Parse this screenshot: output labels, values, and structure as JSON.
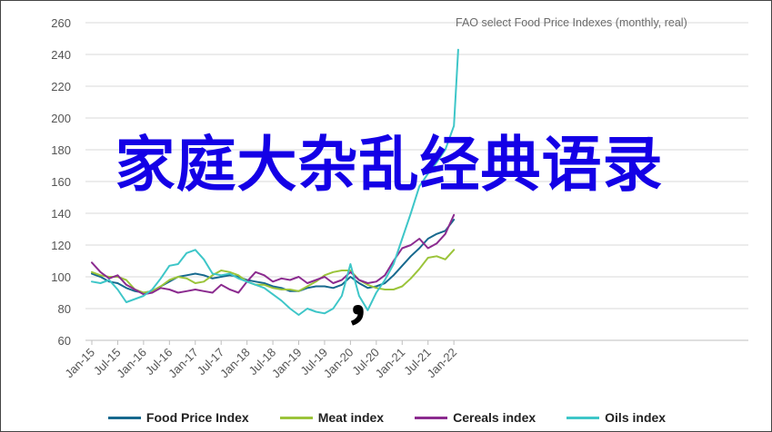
{
  "chart_data": {
    "type": "line",
    "title": "FAO select Food Price Indexes (monthly, real)",
    "xlabel": "",
    "ylabel": "",
    "ylim": [
      60,
      260
    ],
    "y_ticks": [
      60,
      80,
      100,
      120,
      140,
      160,
      180,
      200,
      220,
      240,
      260
    ],
    "x_tick_labels": [
      "Jan-15",
      "Jul-15",
      "Jan-16",
      "Jul-16",
      "Jan-17",
      "Jul-17",
      "Jan-18",
      "Jul-18",
      "Jan-19",
      "Jul-19",
      "Jan-20",
      "Jul-20",
      "Jan-21",
      "Jul-21",
      "Jan-22"
    ],
    "grid": "horizontal",
    "legend_position": "bottom",
    "series": [
      {
        "name": "Food Price Index",
        "color": "#17698e",
        "points": [
          [
            "2015-01",
            102
          ],
          [
            "2015-03",
            100
          ],
          [
            "2015-05",
            97
          ],
          [
            "2015-07",
            96
          ],
          [
            "2015-09",
            93
          ],
          [
            "2015-11",
            91
          ],
          [
            "2016-01",
            90
          ],
          [
            "2016-03",
            91
          ],
          [
            "2016-05",
            94
          ],
          [
            "2016-07",
            97
          ],
          [
            "2016-09",
            100
          ],
          [
            "2016-11",
            101
          ],
          [
            "2017-01",
            102
          ],
          [
            "2017-03",
            101
          ],
          [
            "2017-05",
            99
          ],
          [
            "2017-07",
            100
          ],
          [
            "2017-09",
            101
          ],
          [
            "2017-11",
            100
          ],
          [
            "2018-01",
            98
          ],
          [
            "2018-03",
            97
          ],
          [
            "2018-05",
            96
          ],
          [
            "2018-07",
            94
          ],
          [
            "2018-09",
            93
          ],
          [
            "2018-11",
            91
          ],
          [
            "2019-01",
            91
          ],
          [
            "2019-03",
            93
          ],
          [
            "2019-05",
            94
          ],
          [
            "2019-07",
            94
          ],
          [
            "2019-09",
            93
          ],
          [
            "2019-11",
            95
          ],
          [
            "2020-01",
            100
          ],
          [
            "2020-03",
            96
          ],
          [
            "2020-05",
            93
          ],
          [
            "2020-07",
            94
          ],
          [
            "2020-09",
            96
          ],
          [
            "2020-11",
            101
          ],
          [
            "2021-01",
            107
          ],
          [
            "2021-03",
            113
          ],
          [
            "2021-05",
            118
          ],
          [
            "2021-07",
            124
          ],
          [
            "2021-09",
            127
          ],
          [
            "2021-11",
            129
          ],
          [
            "2022-01",
            136
          ]
        ]
      },
      {
        "name": "Meat index",
        "color": "#9bc43a",
        "points": [
          [
            "2015-01",
            103
          ],
          [
            "2015-03",
            101
          ],
          [
            "2015-05",
            100
          ],
          [
            "2015-07",
            100
          ],
          [
            "2015-09",
            98
          ],
          [
            "2015-11",
            92
          ],
          [
            "2016-01",
            90
          ],
          [
            "2016-03",
            91
          ],
          [
            "2016-05",
            94
          ],
          [
            "2016-07",
            98
          ],
          [
            "2016-09",
            100
          ],
          [
            "2016-11",
            99
          ],
          [
            "2017-01",
            96
          ],
          [
            "2017-03",
            97
          ],
          [
            "2017-05",
            101
          ],
          [
            "2017-07",
            104
          ],
          [
            "2017-09",
            103
          ],
          [
            "2017-11",
            101
          ],
          [
            "2018-01",
            97
          ],
          [
            "2018-03",
            95
          ],
          [
            "2018-05",
            95
          ],
          [
            "2018-07",
            93
          ],
          [
            "2018-09",
            92
          ],
          [
            "2018-11",
            92
          ],
          [
            "2019-01",
            91
          ],
          [
            "2019-03",
            94
          ],
          [
            "2019-05",
            97
          ],
          [
            "2019-07",
            101
          ],
          [
            "2019-09",
            103
          ],
          [
            "2019-11",
            104
          ],
          [
            "2020-01",
            104
          ],
          [
            "2020-03",
            98
          ],
          [
            "2020-05",
            95
          ],
          [
            "2020-07",
            93
          ],
          [
            "2020-09",
            92
          ],
          [
            "2020-11",
            92
          ],
          [
            "2021-01",
            94
          ],
          [
            "2021-03",
            99
          ],
          [
            "2021-05",
            105
          ],
          [
            "2021-07",
            112
          ],
          [
            "2021-09",
            113
          ],
          [
            "2021-11",
            111
          ],
          [
            "2022-01",
            117
          ]
        ]
      },
      {
        "name": "Cereals index",
        "color": "#8b2b8f",
        "points": [
          [
            "2015-01",
            109
          ],
          [
            "2015-03",
            103
          ],
          [
            "2015-05",
            99
          ],
          [
            "2015-07",
            101
          ],
          [
            "2015-09",
            95
          ],
          [
            "2015-11",
            92
          ],
          [
            "2016-01",
            89
          ],
          [
            "2016-03",
            90
          ],
          [
            "2016-05",
            93
          ],
          [
            "2016-07",
            92
          ],
          [
            "2016-09",
            90
          ],
          [
            "2016-11",
            91
          ],
          [
            "2017-01",
            92
          ],
          [
            "2017-03",
            91
          ],
          [
            "2017-05",
            90
          ],
          [
            "2017-07",
            95
          ],
          [
            "2017-09",
            92
          ],
          [
            "2017-11",
            90
          ],
          [
            "2018-01",
            97
          ],
          [
            "2018-03",
            103
          ],
          [
            "2018-05",
            101
          ],
          [
            "2018-07",
            97
          ],
          [
            "2018-09",
            99
          ],
          [
            "2018-11",
            98
          ],
          [
            "2019-01",
            100
          ],
          [
            "2019-03",
            96
          ],
          [
            "2019-05",
            98
          ],
          [
            "2019-07",
            100
          ],
          [
            "2019-09",
            96
          ],
          [
            "2019-11",
            98
          ],
          [
            "2020-01",
            103
          ],
          [
            "2020-03",
            98
          ],
          [
            "2020-05",
            96
          ],
          [
            "2020-07",
            97
          ],
          [
            "2020-09",
            101
          ],
          [
            "2020-11",
            110
          ],
          [
            "2021-01",
            118
          ],
          [
            "2021-03",
            120
          ],
          [
            "2021-05",
            124
          ],
          [
            "2021-07",
            118
          ],
          [
            "2021-09",
            121
          ],
          [
            "2021-11",
            127
          ],
          [
            "2022-01",
            139
          ]
        ]
      },
      {
        "name": "Oils index",
        "color": "#3ec6c8",
        "points": [
          [
            "2015-01",
            97
          ],
          [
            "2015-03",
            96
          ],
          [
            "2015-05",
            98
          ],
          [
            "2015-07",
            92
          ],
          [
            "2015-09",
            84
          ],
          [
            "2015-11",
            86
          ],
          [
            "2016-01",
            88
          ],
          [
            "2016-03",
            92
          ],
          [
            "2016-05",
            99
          ],
          [
            "2016-07",
            107
          ],
          [
            "2016-09",
            108
          ],
          [
            "2016-11",
            115
          ],
          [
            "2017-01",
            117
          ],
          [
            "2017-03",
            111
          ],
          [
            "2017-05",
            102
          ],
          [
            "2017-07",
            101
          ],
          [
            "2017-09",
            102
          ],
          [
            "2017-11",
            99
          ],
          [
            "2018-01",
            97
          ],
          [
            "2018-03",
            95
          ],
          [
            "2018-05",
            93
          ],
          [
            "2018-07",
            89
          ],
          [
            "2018-09",
            85
          ],
          [
            "2018-11",
            80
          ],
          [
            "2019-01",
            76
          ],
          [
            "2019-03",
            80
          ],
          [
            "2019-05",
            78
          ],
          [
            "2019-07",
            77
          ],
          [
            "2019-09",
            80
          ],
          [
            "2019-11",
            88
          ],
          [
            "2020-01",
            108
          ],
          [
            "2020-03",
            88
          ],
          [
            "2020-05",
            79
          ],
          [
            "2020-07",
            90
          ],
          [
            "2020-09",
            98
          ],
          [
            "2020-11",
            108
          ],
          [
            "2021-01",
            124
          ],
          [
            "2021-03",
            140
          ],
          [
            "2021-05",
            157
          ],
          [
            "2021-07",
            165
          ],
          [
            "2021-09",
            172
          ],
          [
            "2021-11",
            180
          ],
          [
            "2022-01",
            195
          ],
          [
            "2022-02",
            243
          ]
        ]
      }
    ]
  },
  "overlay": {
    "headline": "家庭大杂乱经典语录",
    "punctuation": "，"
  }
}
